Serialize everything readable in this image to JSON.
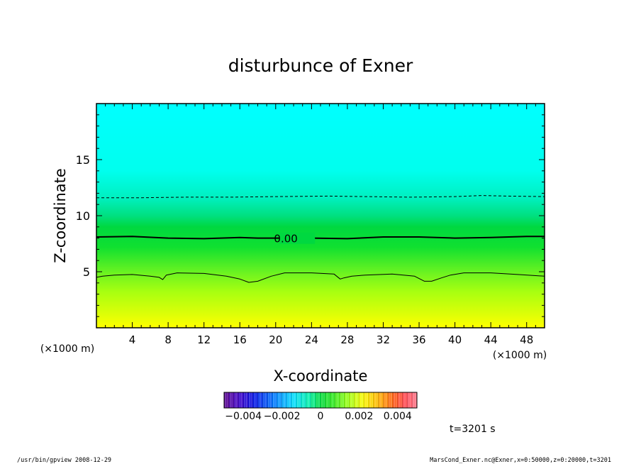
{
  "chart_data": {
    "type": "heatmap",
    "title": "disturbunce of Exner",
    "xlabel": "X-coordinate",
    "ylabel": "Z-coordinate",
    "x_unit_label": "(×1000 m)",
    "y_unit_label": "(×1000 m)",
    "xlim": [
      0,
      50
    ],
    "ylim": [
      0,
      20
    ],
    "x_ticks": [
      4,
      8,
      12,
      16,
      20,
      24,
      28,
      32,
      36,
      40,
      44,
      48
    ],
    "y_ticks": [
      5,
      10,
      15
    ],
    "contours": [
      {
        "level": -0.002,
        "style": "dashed",
        "x": [
          0,
          5,
          10,
          15,
          20,
          26,
          30,
          35,
          40,
          43,
          46,
          50
        ],
        "z": [
          11.6,
          11.6,
          11.65,
          11.65,
          11.7,
          11.75,
          11.7,
          11.65,
          11.7,
          11.8,
          11.75,
          11.7
        ]
      },
      {
        "level": 0.0,
        "label": "0.00",
        "style": "solid-thick",
        "x": [
          0,
          4,
          8,
          12,
          16,
          18,
          20,
          24,
          28,
          32,
          36,
          40,
          44,
          48,
          50
        ],
        "z": [
          8.1,
          8.15,
          8.0,
          7.95,
          8.05,
          8.0,
          8.0,
          8.0,
          7.95,
          8.1,
          8.1,
          8.0,
          8.05,
          8.15,
          8.15
        ]
      },
      {
        "level": 0.002,
        "style": "solid-thin",
        "x": [
          0,
          0.7,
          2,
          4,
          6,
          7,
          7.4,
          7.8,
          9,
          12,
          14.5,
          16,
          17,
          18,
          19.5,
          21,
          24,
          26.5,
          27.2,
          27.6,
          28.5,
          30,
          33,
          35.5,
          36.6,
          37.4,
          38.5,
          39.5,
          41,
          44,
          47,
          50
        ],
        "z": [
          4.5,
          4.6,
          4.7,
          4.75,
          4.6,
          4.5,
          4.3,
          4.7,
          4.9,
          4.85,
          4.6,
          4.35,
          4.05,
          4.15,
          4.6,
          4.9,
          4.9,
          4.8,
          4.35,
          4.45,
          4.6,
          4.7,
          4.8,
          4.6,
          4.15,
          4.15,
          4.45,
          4.7,
          4.9,
          4.9,
          4.75,
          4.6
        ]
      }
    ],
    "colorbar": {
      "range": [
        -0.005,
        0.005
      ],
      "tick_labels": [
        "−0.004",
        "−0.002",
        "0",
        "0.002",
        "0.004"
      ],
      "tick_values": [
        -0.004,
        -0.002,
        0,
        0.002,
        0.004
      ]
    },
    "colors": {
      "field_top": "#00ffff",
      "field_mid": "#00e040",
      "field_low": "#90ff10",
      "field_bottom": "#ffff00"
    }
  },
  "annotations": {
    "time": "t=3201 s",
    "footer_left": "/usr/bin/gpview   2008-12-29",
    "footer_right": "MarsCond_Exner.nc@Exner,x=0:50000,z=0:20000,t=3201"
  }
}
